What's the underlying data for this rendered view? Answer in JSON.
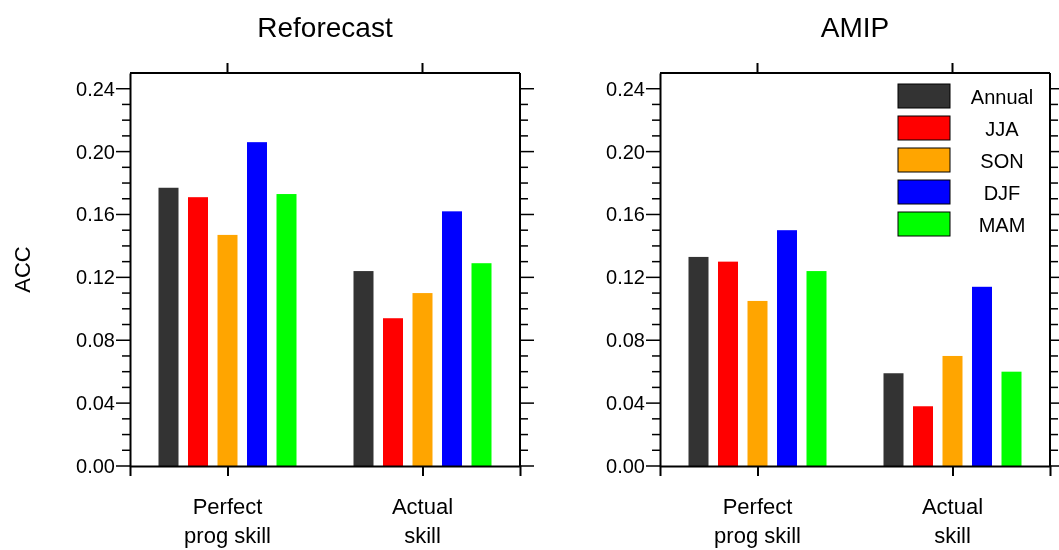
{
  "chart_data": [
    {
      "type": "bar",
      "title": "Reforecast",
      "ylabel": "ACC",
      "categories": [
        "Perfect prog skill",
        "Actual skill"
      ],
      "series": [
        {
          "color": "#333333",
          "values": [
            0.177,
            0.124
          ]
        },
        {
          "color": "#ff0000",
          "values": [
            0.171,
            0.094
          ]
        },
        {
          "color": "#ffa500",
          "values": [
            0.147,
            0.11
          ]
        },
        {
          "color": "#0000ff",
          "values": [
            0.206,
            0.162
          ]
        },
        {
          "color": "#00ff00",
          "values": [
            0.173,
            0.129
          ]
        }
      ],
      "ylim": [
        0,
        0.25
      ],
      "yticks": [
        "0.00",
        {
          "value": 0.01,
          "label": null
        },
        {
          "value": 0.02,
          "label": null
        },
        {
          "value": 0.03,
          "label": null
        },
        {
          "value": 0.04,
          "label": "0.04"
        },
        {
          "value": 0.05,
          "label": null
        },
        {
          "value": 0.06,
          "label": null
        },
        {
          "value": 0.07,
          "label": null
        },
        {
          "value": 0.08,
          "label": "0.08"
        },
        {
          "value": 0.09,
          "label": null
        },
        {
          "value": 0.1,
          "label": null
        },
        {
          "value": 0.11,
          "label": null
        },
        {
          "value": 0.12,
          "label": "0.12"
        },
        {
          "value": 0.13,
          "label": null
        },
        {
          "value": 0.14,
          "label": null
        },
        {
          "value": 0.15,
          "label": null
        },
        {
          "value": 0.16,
          "label": "0.16"
        },
        {
          "value": 0.17,
          "label": null
        },
        {
          "value": 0.18,
          "label": null
        },
        {
          "value": 0.19,
          "label": null
        },
        {
          "value": 0.2,
          "label": "0.20"
        },
        {
          "value": 0.21,
          "label": null
        },
        {
          "value": 0.22,
          "label": null
        },
        {
          "value": 0.23,
          "label": null
        },
        {
          "value": 0.24,
          "label": "0.24"
        }
      ],
      "grid": false,
      "legend": false
    },
    {
      "type": "bar",
      "title": "AMIP",
      "categories": [
        "Perfect prog skill",
        "Actual skill"
      ],
      "series": [
        {
          "name": "Annual",
          "color": "#333333",
          "values": [
            0.133,
            0.059
          ]
        },
        {
          "name": "JJA",
          "color": "#ff0000",
          "values": [
            0.13,
            0.038
          ]
        },
        {
          "name": "SON",
          "color": "#ffa500",
          "values": [
            0.105,
            0.07
          ]
        },
        {
          "name": "DJF",
          "color": "#0000ff",
          "values": [
            0.15,
            0.114
          ]
        },
        {
          "name": "MAM",
          "color": "#00ff00",
          "values": [
            0.124,
            0.06
          ]
        }
      ],
      "ylim": [
        0,
        0.25
      ],
      "yticks": [
        "0.00",
        {
          "value": 0.01,
          "label": null
        },
        {
          "value": 0.02,
          "label": null
        },
        {
          "value": 0.03,
          "label": null
        },
        {
          "value": 0.04,
          "label": "0.04"
        },
        {
          "value": 0.05,
          "label": null
        },
        {
          "value": 0.06,
          "label": null
        },
        {
          "value": 0.07,
          "label": null
        },
        {
          "value": 0.08,
          "label": "0.08"
        },
        {
          "value": 0.09,
          "label": null
        },
        {
          "value": 0.1,
          "label": null
        },
        {
          "value": 0.11,
          "label": null
        },
        {
          "value": 0.12,
          "label": "0.12"
        },
        {
          "value": 0.13,
          "label": null
        },
        {
          "value": 0.14,
          "label": null
        },
        {
          "value": 0.15,
          "label": null
        },
        {
          "value": 0.16,
          "label": "0.16"
        },
        {
          "value": 0.17,
          "label": null
        },
        {
          "value": 0.18,
          "label": null
        },
        {
          "value": 0.19,
          "label": null
        },
        {
          "value": 0.2,
          "label": "0.20"
        },
        {
          "value": 0.21,
          "label": null
        },
        {
          "value": 0.22,
          "label": null
        },
        {
          "value": 0.23,
          "label": null
        },
        {
          "value": 0.24,
          "label": "0.24"
        }
      ],
      "grid": false,
      "legend": "top right"
    }
  ]
}
